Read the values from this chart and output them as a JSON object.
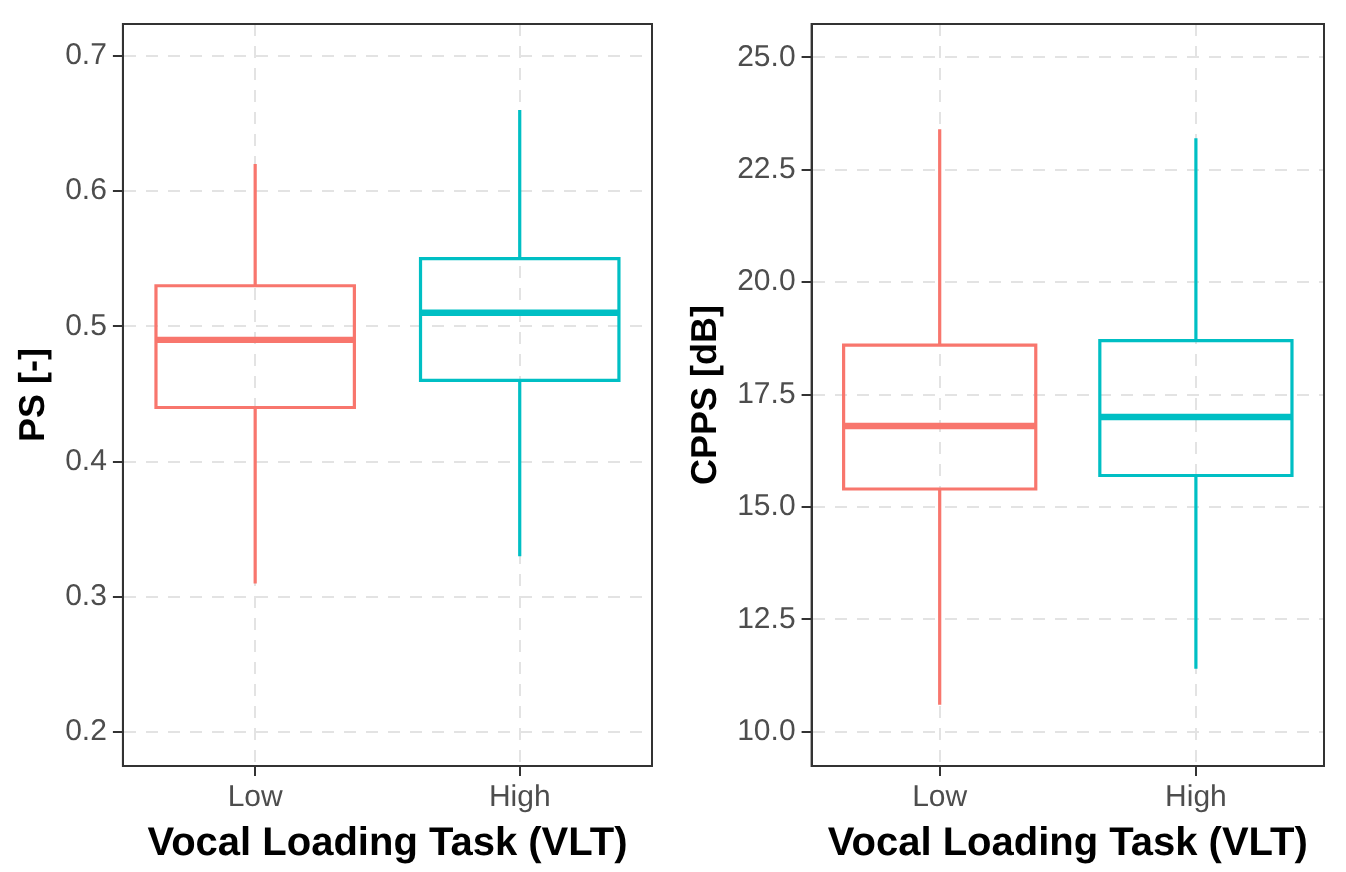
{
  "chart_data": [
    {
      "type": "box",
      "xlabel": "Vocal Loading Task (VLT)",
      "ylabel": "PS [-]",
      "categories": [
        "Low",
        "High"
      ],
      "colors": [
        "#f8766d",
        "#00bfc4"
      ],
      "boxes": [
        {
          "low": 0.31,
          "q1": 0.44,
          "median": 0.49,
          "q3": 0.53,
          "high": 0.62
        },
        {
          "low": 0.33,
          "q1": 0.46,
          "median": 0.51,
          "q3": 0.55,
          "high": 0.66
        }
      ],
      "ylim": [
        0.175,
        0.7235
      ],
      "yticks": [
        0.2,
        0.3,
        0.4,
        0.5,
        0.6,
        0.7
      ],
      "grid": true
    },
    {
      "type": "box",
      "xlabel": "Vocal Loading Task (VLT)",
      "ylabel": "CPPS [dB]",
      "categories": [
        "Low",
        "High"
      ],
      "colors": [
        "#f8766d",
        "#00bfc4"
      ],
      "boxes": [
        {
          "low": 10.6,
          "q1": 15.4,
          "median": 16.8,
          "q3": 18.6,
          "high": 23.4
        },
        {
          "low": 11.4,
          "q1": 15.7,
          "median": 17.0,
          "q3": 18.7,
          "high": 23.2
        }
      ],
      "ylim": [
        9.24,
        25.74
      ],
      "yticks": [
        {
          "value": 10,
          "label": "10.0"
        },
        12.5,
        {
          "value": 15,
          "label": "15.0"
        },
        17.5,
        {
          "value": 20,
          "label": "20.0"
        },
        22.5,
        {
          "value": 25,
          "label": "25.0"
        }
      ],
      "grid": true
    }
  ]
}
